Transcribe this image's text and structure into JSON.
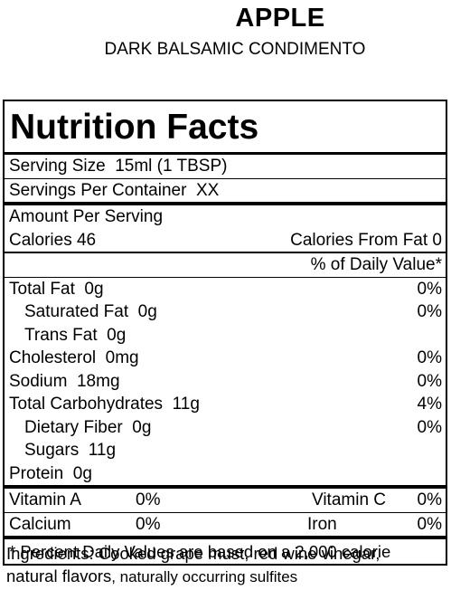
{
  "header": {
    "title": "APPLE",
    "subtitle": "DARK BALSAMIC CONDIMENTO"
  },
  "label": {
    "title": "Nutrition Facts",
    "serving_size": "Serving Size  15ml (1 TBSP)",
    "servings_per_container": "Servings Per Container  XX",
    "amount_per_serving": "Amount Per Serving",
    "calories": "Calories 46",
    "calories_from_fat": "Calories From Fat 0",
    "daily_value_header": "% of Daily Value*",
    "nutrients": [
      {
        "name": "Total Fat  0g",
        "dv": "0%"
      },
      {
        "name": "Saturated Fat  0g",
        "dv": "0%"
      },
      {
        "name": "Trans Fat  0g",
        "dv": ""
      },
      {
        "name": "Cholesterol  0mg",
        "dv": "0%"
      },
      {
        "name": "Sodium  18mg",
        "dv": "0%"
      },
      {
        "name": "Total Carbohydrates  11g",
        "dv": "4%"
      },
      {
        "name": "Dietary Fiber  0g",
        "dv": "0%"
      },
      {
        "name": "Sugars  11g",
        "dv": ""
      },
      {
        "name": "Protein  0g",
        "dv": ""
      }
    ],
    "vitamins": [
      {
        "name": "Vitamin A",
        "dv": "0%"
      },
      {
        "name": "Vitamin C",
        "dv": "0%"
      },
      {
        "name": "Calcium",
        "dv": "0%"
      },
      {
        "name": "Iron",
        "dv": "0%"
      }
    ],
    "footnote": "* Percent Daily Values are based on a 2,000 calorie"
  },
  "ingredients": {
    "line1": "Ingredients: Cooked grape must, red wine vinegar,",
    "line2a": "natural flavors",
    "line2b": ", naturally occurring sulfites"
  }
}
